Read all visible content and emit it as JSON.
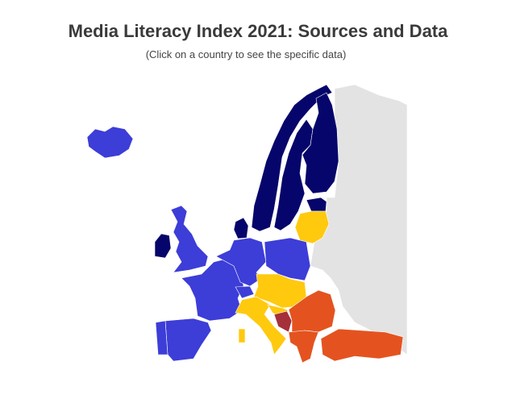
{
  "title": "Media Literacy Index 2021: Sources and Data",
  "subtitle": "(Click on a country to see the specific data)"
}
